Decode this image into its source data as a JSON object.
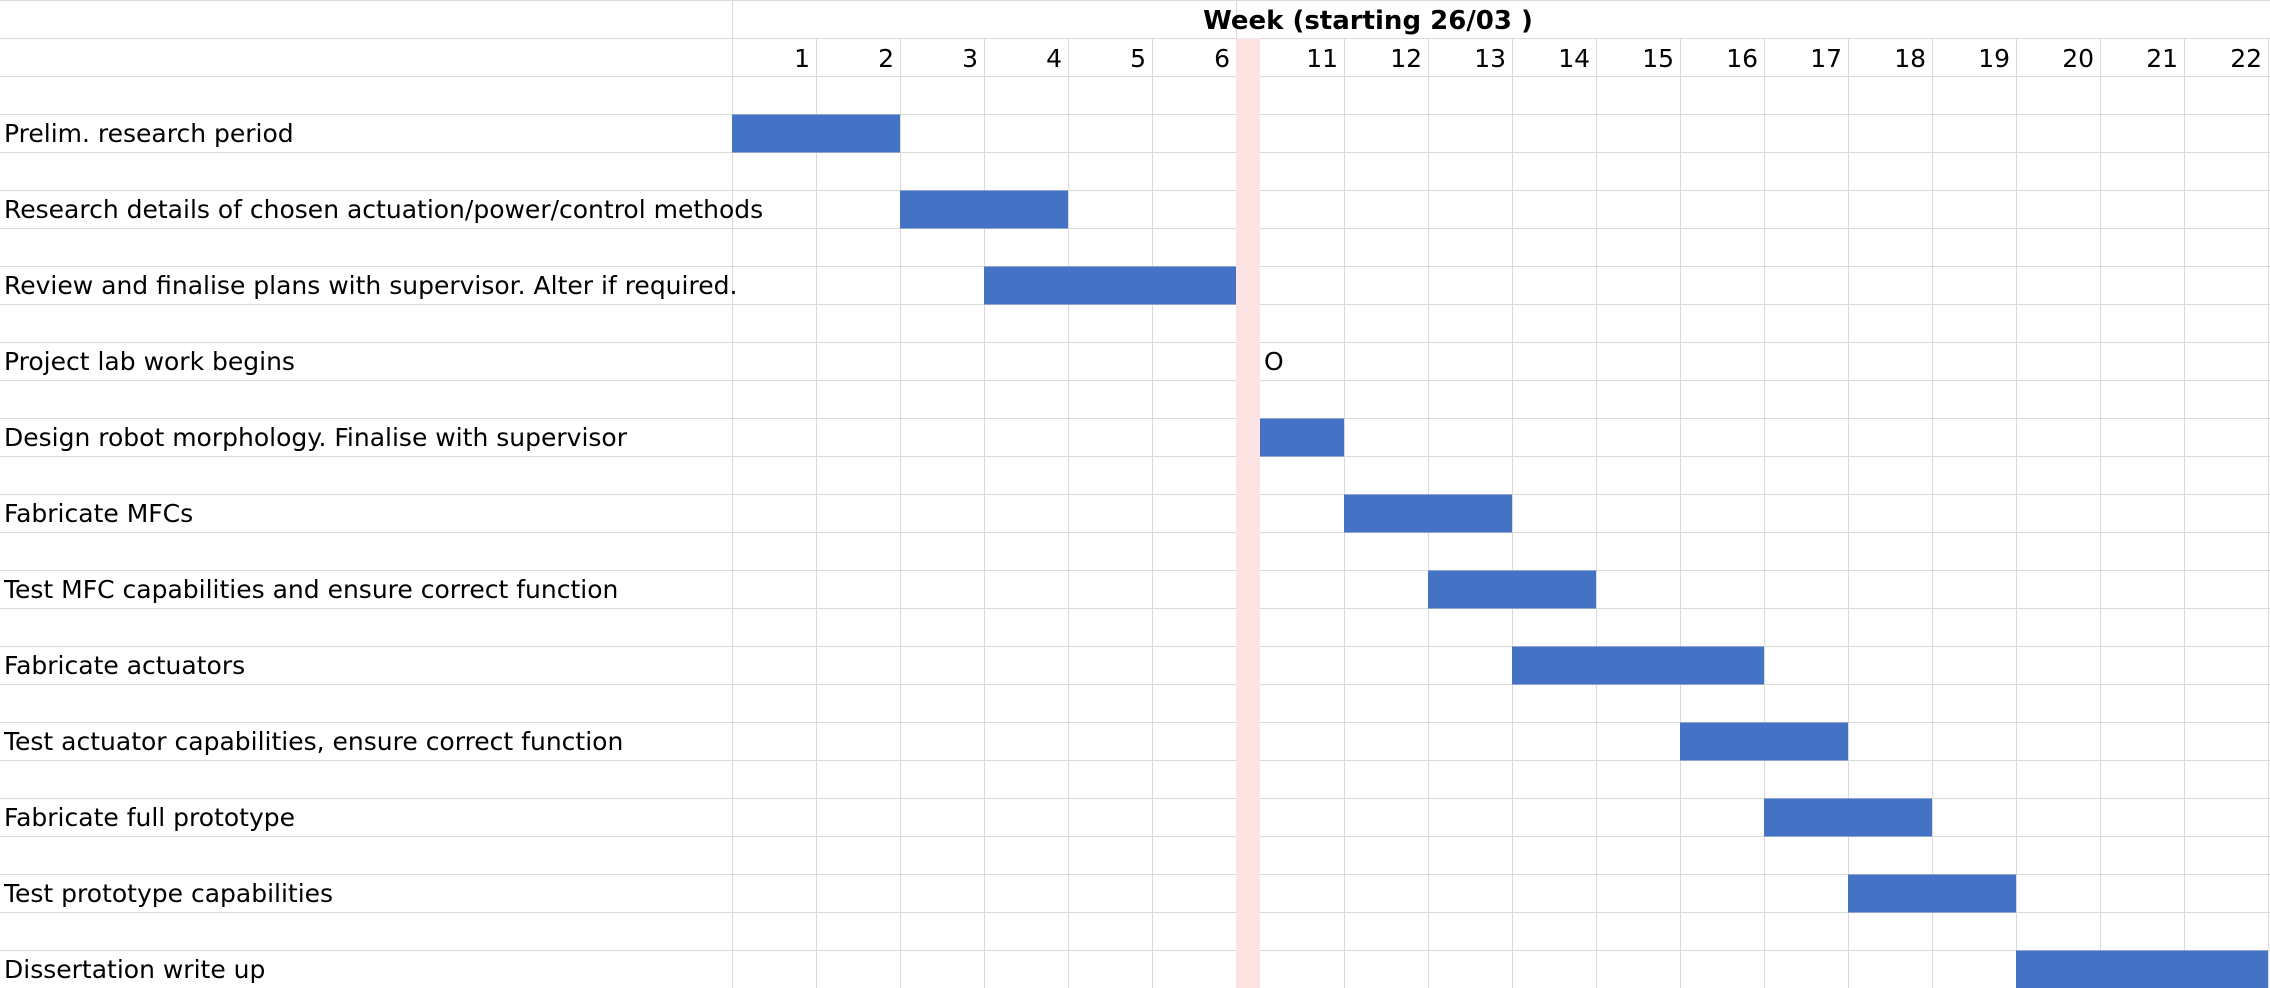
{
  "chart_data": {
    "type": "gantt",
    "header": "Week (starting 26/03 )",
    "weeks": [
      "1",
      "2",
      "3",
      "4",
      "5",
      "6",
      "11",
      "12",
      "13",
      "14",
      "15",
      "16",
      "17",
      "18",
      "19",
      "20",
      "21",
      "22"
    ],
    "gap_after_week": "6",
    "tasks": [
      {
        "label": "Prelim. research period",
        "start": "1",
        "end": "2"
      },
      {
        "label": "Research details of chosen actuation/power/control methods",
        "start": "3",
        "end": "4"
      },
      {
        "label": "Review and finalise plans with supervisor. Alter if required.",
        "start": "4",
        "end": "6"
      },
      {
        "label": "Project lab work begins",
        "milestone": "11",
        "marker": "O"
      },
      {
        "label": "Design robot morphology. Finalise with supervisor",
        "start": "11",
        "end": "11"
      },
      {
        "label": "Fabricate MFCs",
        "start": "12",
        "end": "13"
      },
      {
        "label": "Test MFC capabilities and ensure correct function",
        "start": "13",
        "end": "14"
      },
      {
        "label": "Fabricate actuators",
        "start": "14",
        "end": "16"
      },
      {
        "label": "Test actuator capabilities, ensure correct function",
        "start": "16",
        "end": "17"
      },
      {
        "label": "Fabricate full prototype",
        "start": "17",
        "end": "18"
      },
      {
        "label": "Test prototype capabilities",
        "start": "18",
        "end": "19"
      },
      {
        "label": "Dissertation write up",
        "start": "20",
        "end": "22"
      }
    ],
    "colors": {
      "bar": "#4472c4",
      "gap_band": "#fce4e4",
      "gridline": "#d9d9d9",
      "text": "#000000"
    }
  }
}
